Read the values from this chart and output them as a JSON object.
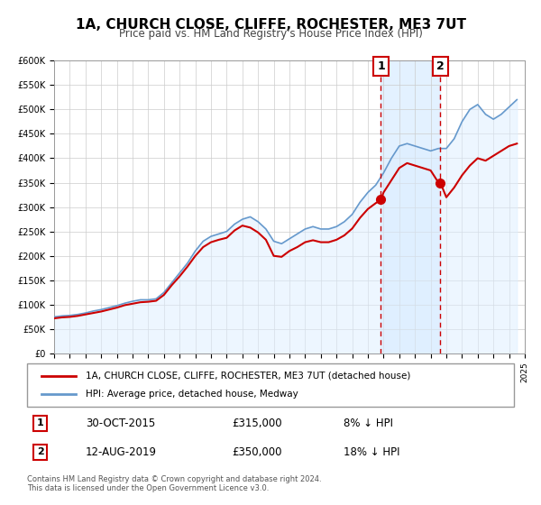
{
  "title": "1A, CHURCH CLOSE, CLIFFE, ROCHESTER, ME3 7UT",
  "subtitle": "Price paid vs. HM Land Registry's House Price Index (HPI)",
  "xlabel": "",
  "ylabel": "",
  "ylim": [
    0,
    600000
  ],
  "yticks": [
    0,
    50000,
    100000,
    150000,
    200000,
    250000,
    300000,
    350000,
    400000,
    450000,
    500000,
    550000,
    600000
  ],
  "xlim_start": 1995,
  "xlim_end": 2025,
  "sale1_x": 2015.83,
  "sale1_y": 315000,
  "sale1_label": "1",
  "sale1_date": "30-OCT-2015",
  "sale1_price": "£315,000",
  "sale1_hpi": "8% ↓ HPI",
  "sale2_x": 2019.62,
  "sale2_y": 350000,
  "sale2_label": "2",
  "sale2_date": "12-AUG-2019",
  "sale2_price": "£350,000",
  "sale2_hpi": "18% ↓ HPI",
  "red_line_color": "#cc0000",
  "blue_line_color": "#6699cc",
  "blue_fill_color": "#ddeeff",
  "marker_color": "#cc0000",
  "grid_color": "#cccccc",
  "background_color": "#ffffff",
  "legend_label_red": "1A, CHURCH CLOSE, CLIFFE, ROCHESTER, ME3 7UT (detached house)",
  "legend_label_blue": "HPI: Average price, detached house, Medway",
  "footer_text": "Contains HM Land Registry data © Crown copyright and database right 2024.\nThis data is licensed under the Open Government Licence v3.0.",
  "annotation_box_color": "#cc0000",
  "shade_color": "#ddeeff"
}
